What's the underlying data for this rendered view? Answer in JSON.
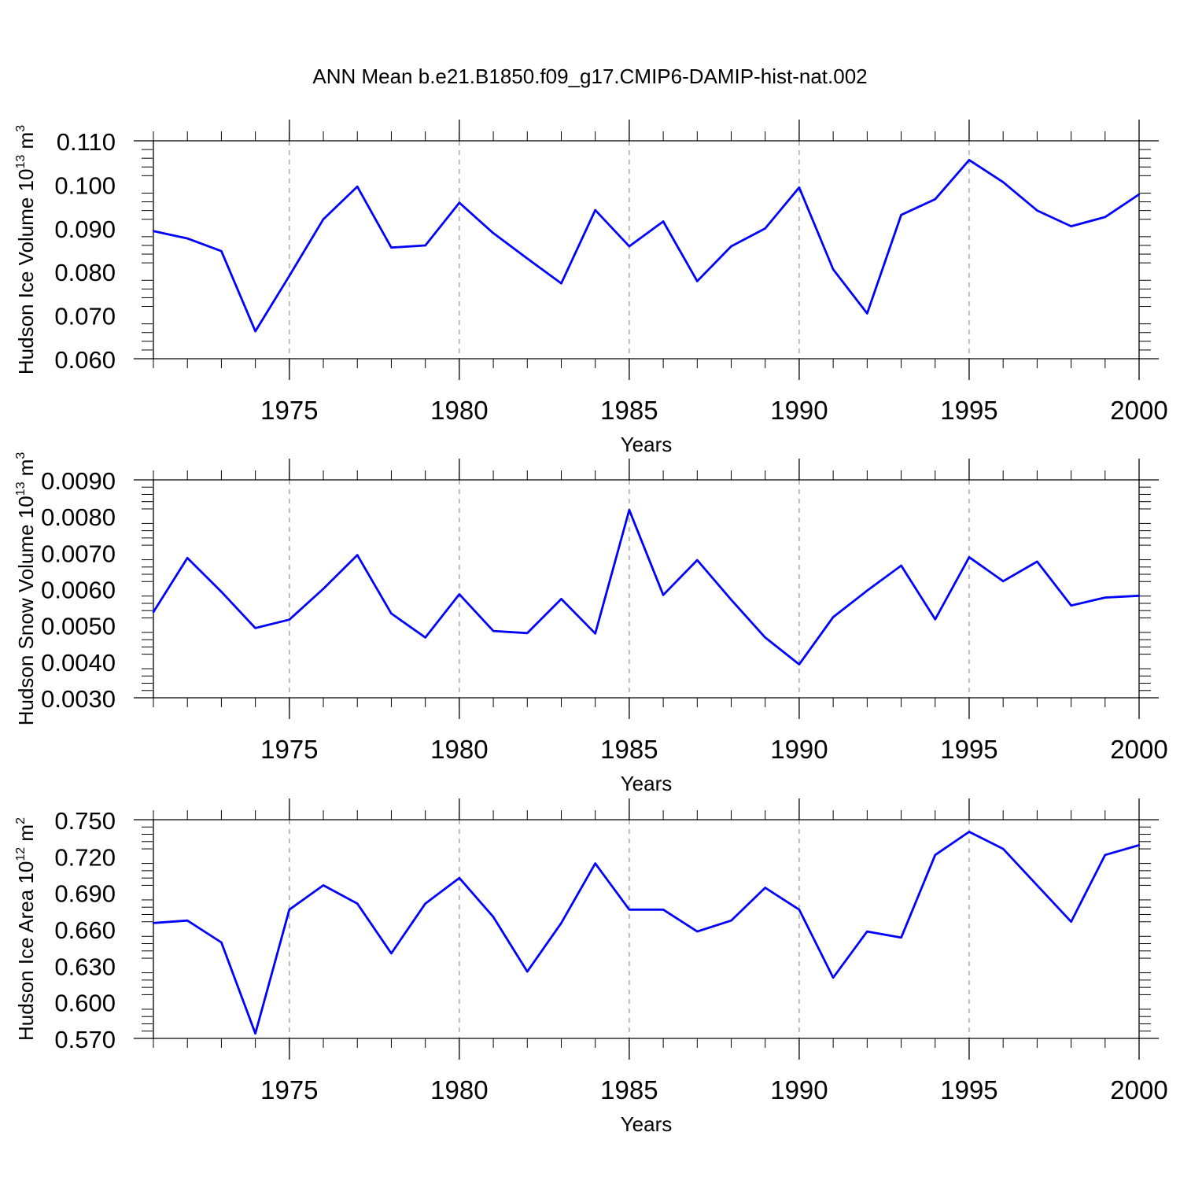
{
  "title": "ANN Mean b.e21.B1850.f09_g17.CMIP6-DAMIP-hist-nat.002",
  "colors": {
    "line": "#0000ff",
    "axis": "#000000",
    "grid": "#9a9a9a"
  },
  "chart_data": [
    {
      "type": "line",
      "ylabel": "Hudson Ice Volume 10",
      "ylabel_exp": "13",
      "ylabel_unit": " m",
      "ylabel_unit_exp": "3",
      "xlabel": "Years",
      "xlim": [
        1971,
        2000
      ],
      "ylim": [
        0.06,
        0.11
      ],
      "yticks": [
        0.06,
        0.07,
        0.08,
        0.09,
        0.1,
        0.11
      ],
      "ytick_labels": [
        "0.060",
        "0.070",
        "0.080",
        "0.090",
        "0.100",
        "0.110"
      ],
      "xticks": [
        1975,
        1980,
        1985,
        1990,
        1995,
        2000
      ],
      "xtick_labels": [
        "1975",
        "1980",
        "1985",
        "1990",
        "1995",
        "2000"
      ],
      "grid": "vertical dashed at major x ticks",
      "x": [
        1971,
        1972,
        1973,
        1974,
        1975,
        1976,
        1977,
        1978,
        1979,
        1980,
        1981,
        1982,
        1983,
        1984,
        1985,
        1986,
        1987,
        1988,
        1989,
        1990,
        1991,
        1992,
        1993,
        1994,
        1995,
        1996,
        1997,
        1998,
        1999,
        2000
      ],
      "values": [
        0.0893,
        0.0876,
        0.0847,
        0.0663,
        0.079,
        0.092,
        0.0995,
        0.0855,
        0.086,
        0.0958,
        0.0888,
        0.083,
        0.0773,
        0.0941,
        0.0858,
        0.0915,
        0.0778,
        0.0858,
        0.0899,
        0.0993,
        0.0805,
        0.0704,
        0.093,
        0.0966,
        0.1056,
        0.1005,
        0.094,
        0.0904,
        0.0925,
        0.0977
      ]
    },
    {
      "type": "line",
      "ylabel": "Hudson Snow Volume 10",
      "ylabel_exp": "13",
      "ylabel_unit": " m",
      "ylabel_unit_exp": "3",
      "xlabel": "Years",
      "xlim": [
        1971,
        2000
      ],
      "ylim": [
        0.003,
        0.009
      ],
      "yticks": [
        0.003,
        0.004,
        0.005,
        0.006,
        0.007,
        0.008,
        0.009
      ],
      "ytick_labels": [
        "0.0030",
        "0.0040",
        "0.0050",
        "0.0060",
        "0.0070",
        "0.0080",
        "0.0090"
      ],
      "xticks": [
        1975,
        1980,
        1985,
        1990,
        1995,
        2000
      ],
      "xtick_labels": [
        "1975",
        "1980",
        "1985",
        "1990",
        "1995",
        "2000"
      ],
      "grid": "vertical dashed at major x ticks",
      "x": [
        1971,
        1972,
        1973,
        1974,
        1975,
        1976,
        1977,
        1978,
        1979,
        1980,
        1981,
        1982,
        1983,
        1984,
        1985,
        1986,
        1987,
        1988,
        1989,
        1990,
        1991,
        1992,
        1993,
        1994,
        1995,
        1996,
        1997,
        1998,
        1999,
        2000
      ],
      "values": [
        0.00536,
        0.00685,
        0.00592,
        0.00492,
        0.00515,
        0.006,
        0.00693,
        0.00532,
        0.00466,
        0.00585,
        0.00484,
        0.00478,
        0.00572,
        0.00477,
        0.00817,
        0.00583,
        0.00679,
        0.0057,
        0.00466,
        0.00392,
        0.00522,
        0.00595,
        0.00664,
        0.00516,
        0.00687,
        0.00621,
        0.00675,
        0.00554,
        0.00576,
        0.00581
      ]
    },
    {
      "type": "line",
      "ylabel": "Hudson Ice Area 10",
      "ylabel_exp": "12",
      "ylabel_unit": " m",
      "ylabel_unit_exp": "2",
      "xlabel": "Years",
      "xlim": [
        1971,
        2000
      ],
      "ylim": [
        0.57,
        0.75
      ],
      "yticks": [
        0.57,
        0.6,
        0.63,
        0.66,
        0.69,
        0.72,
        0.75
      ],
      "ytick_labels": [
        "0.570",
        "0.600",
        "0.630",
        "0.660",
        "0.690",
        "0.720",
        "0.750"
      ],
      "xticks": [
        1975,
        1980,
        1985,
        1990,
        1995,
        2000
      ],
      "xtick_labels": [
        "1975",
        "1980",
        "1985",
        "1990",
        "1995",
        "2000"
      ],
      "grid": "vertical dashed at major x ticks",
      "x": [
        1971,
        1972,
        1973,
        1974,
        1975,
        1976,
        1977,
        1978,
        1979,
        1980,
        1981,
        1982,
        1983,
        1984,
        1985,
        1986,
        1987,
        1988,
        1989,
        1990,
        1991,
        1992,
        1993,
        1994,
        1995,
        1996,
        1997,
        1998,
        1999,
        2000
      ],
      "values": [
        0.665,
        0.667,
        0.649,
        0.574,
        0.676,
        0.696,
        0.681,
        0.64,
        0.681,
        0.702,
        0.67,
        0.625,
        0.665,
        0.714,
        0.676,
        0.676,
        0.658,
        0.667,
        0.694,
        0.676,
        0.62,
        0.658,
        0.653,
        0.721,
        0.74,
        0.726,
        0.696,
        0.666,
        0.721,
        0.729
      ]
    }
  ]
}
